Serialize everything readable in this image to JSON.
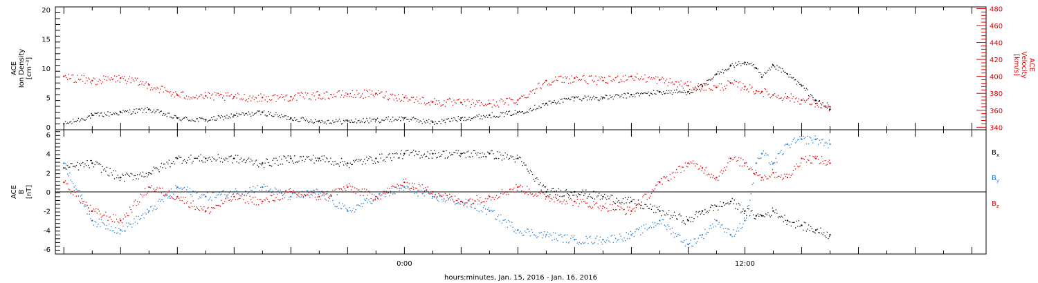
{
  "chart_data": [
    {
      "type": "scatter",
      "x_unit": "hours relative to 2016-01-16 00:00",
      "xlim": [
        -12.3,
        20.5
      ],
      "ylabel_lines": [
        "ACE",
        "Ion Density",
        "[cm⁻³]"
      ],
      "ylim": [
        -0.5,
        20.5
      ],
      "yticks": [
        0,
        5,
        10,
        15,
        20
      ],
      "y2label_lines": [
        "ACE",
        "Velocity",
        "[km/s]"
      ],
      "y2lim": [
        337,
        482
      ],
      "y2ticks": [
        340,
        360,
        380,
        400,
        420,
        440,
        460,
        480
      ],
      "series": [
        {
          "axis": "left",
          "color": "#000000",
          "x": [
            -12.0,
            -11.0,
            -10.0,
            -9.0,
            -8.0,
            -7.0,
            -6.0,
            -5.0,
            -4.0,
            -3.0,
            -2.0,
            -1.0,
            0.0,
            1.0,
            2.0,
            3.0,
            4.0,
            5.0,
            6.0,
            7.0,
            8.0,
            9.0,
            10.0,
            10.5,
            11.0,
            11.5,
            12.0,
            12.4,
            12.6,
            13.0,
            13.5,
            14.0,
            14.5,
            15.0
          ],
          "y": [
            0.5,
            2.0,
            2.5,
            3.0,
            1.5,
            1.2,
            2.0,
            2.5,
            1.5,
            1.0,
            1.0,
            1.2,
            1.5,
            0.8,
            1.5,
            2.0,
            2.5,
            4.0,
            5.0,
            5.0,
            5.5,
            6.0,
            6.0,
            7.0,
            9.0,
            10.5,
            11.0,
            10.0,
            8.5,
            10.5,
            9.0,
            7.0,
            4.5,
            3.0
          ]
        },
        {
          "axis": "right",
          "color": "#dd0000",
          "x": [
            -12.0,
            -11.0,
            -10.0,
            -9.0,
            -8.0,
            -7.0,
            -6.0,
            -5.0,
            -4.0,
            -3.0,
            -2.0,
            -1.0,
            0.0,
            1.0,
            2.0,
            3.0,
            4.0,
            5.0,
            6.0,
            7.0,
            8.0,
            9.0,
            10.0,
            10.5,
            11.0,
            11.5,
            12.0,
            12.4,
            12.6,
            13.0,
            13.5,
            14.0,
            14.5,
            15.0
          ],
          "y": [
            400,
            395,
            398,
            390,
            378,
            377,
            376,
            375,
            376,
            378,
            379,
            380,
            375,
            370,
            369,
            368,
            372,
            395,
            398,
            395,
            400,
            396,
            389,
            388,
            387,
            392,
            388,
            383,
            382,
            378,
            376,
            372,
            368,
            364
          ]
        }
      ]
    },
    {
      "type": "scatter",
      "x_unit": "hours relative to 2016-01-16 00:00",
      "xlim": [
        -12.3,
        20.5
      ],
      "xticks": [
        {
          "x": 0,
          "label": "0:00"
        },
        {
          "x": 12,
          "label": "12:00"
        }
      ],
      "xlabel": "hours:minutes, Jan. 15, 2016 - Jan. 16, 2016",
      "ylabel_lines": [
        "ACE",
        "B",
        "[nT]"
      ],
      "ylim": [
        -6.5,
        6.5
      ],
      "yticks": [
        -6,
        -4,
        -2,
        0,
        2,
        4,
        6
      ],
      "zero_line": true,
      "legend": "right",
      "series": [
        {
          "name": "B",
          "sub": "x",
          "color": "#000000",
          "x": [
            -12.0,
            -11.0,
            -10.0,
            -9.0,
            -8.0,
            -7.0,
            -6.0,
            -5.0,
            -4.0,
            -3.0,
            -2.0,
            -1.0,
            0.0,
            1.0,
            2.0,
            3.0,
            4.0,
            5.0,
            6.0,
            7.0,
            8.0,
            9.0,
            10.0,
            10.5,
            11.0,
            11.5,
            12.0,
            12.4,
            12.6,
            13.0,
            13.5,
            14.0,
            14.5,
            15.0
          ],
          "y": [
            2.5,
            3.0,
            1.5,
            2.0,
            3.5,
            3.5,
            3.5,
            3.0,
            3.5,
            3.5,
            3.0,
            3.5,
            4.0,
            4.0,
            4.0,
            4.0,
            3.5,
            0.0,
            0.0,
            -0.5,
            -1.0,
            -2.0,
            -3.0,
            -2.0,
            -1.5,
            -1.0,
            -2.0,
            -2.5,
            -2.5,
            -2.0,
            -3.0,
            -3.5,
            -4.0,
            -4.5
          ]
        },
        {
          "name": "B",
          "sub": "y",
          "color": "#1f77d0",
          "x": [
            -12.0,
            -11.0,
            -10.0,
            -9.0,
            -8.0,
            -7.0,
            -6.0,
            -5.0,
            -4.0,
            -3.0,
            -2.0,
            -1.0,
            0.0,
            1.0,
            2.0,
            3.0,
            4.0,
            5.0,
            6.0,
            7.0,
            8.0,
            9.0,
            10.0,
            10.5,
            11.0,
            11.5,
            12.0,
            12.4,
            12.6,
            13.0,
            13.5,
            14.0,
            14.5,
            15.0
          ],
          "y": [
            3.0,
            -3.0,
            -4.0,
            -2.0,
            0.5,
            -0.5,
            0.0,
            0.5,
            -0.5,
            0.0,
            -2.0,
            -0.5,
            0.5,
            -0.5,
            -1.0,
            -2.0,
            -4.0,
            -4.5,
            -5.0,
            -5.0,
            -4.5,
            -3.0,
            -5.5,
            -4.5,
            -3.0,
            -4.5,
            -3.0,
            3.0,
            4.0,
            3.0,
            5.0,
            5.5,
            5.5,
            5.0
          ]
        },
        {
          "name": "B",
          "sub": "z",
          "color": "#dd0000",
          "x": [
            -12.0,
            -11.0,
            -10.0,
            -9.0,
            -8.0,
            -7.0,
            -6.0,
            -5.0,
            -4.0,
            -3.0,
            -2.0,
            -1.0,
            0.0,
            1.0,
            2.0,
            3.0,
            4.0,
            5.0,
            6.0,
            7.0,
            8.0,
            9.0,
            10.0,
            10.5,
            11.0,
            11.5,
            12.0,
            12.4,
            12.6,
            13.0,
            13.5,
            14.0,
            14.5,
            15.0
          ],
          "y": [
            1.0,
            -2.0,
            -3.0,
            0.5,
            -0.5,
            -2.0,
            -0.5,
            -1.0,
            0.0,
            -0.5,
            0.5,
            -0.5,
            1.0,
            0.0,
            -1.0,
            -0.5,
            0.5,
            -0.5,
            -1.0,
            -1.5,
            -2.0,
            1.0,
            3.0,
            2.5,
            1.5,
            3.5,
            3.0,
            2.0,
            1.5,
            2.0,
            1.5,
            3.5,
            3.5,
            3.0
          ]
        }
      ]
    }
  ]
}
